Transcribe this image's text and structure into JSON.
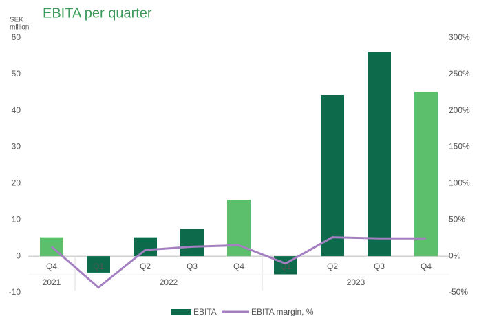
{
  "chart_data": {
    "type": "bar",
    "title": "EBITA per quarter",
    "y_label_lines": [
      "SEK",
      "million"
    ],
    "categories": [
      "Q4",
      "Q1",
      "Q2",
      "Q3",
      "Q4",
      "Q1",
      "Q2",
      "Q3",
      "Q4"
    ],
    "years": [
      "2021",
      "2022",
      null,
      null,
      null,
      "2023",
      null,
      null,
      null
    ],
    "series": [
      {
        "name": "EBITA",
        "type": "bar",
        "color": "#0d6b4b",
        "colors": [
          "#5bbf6b",
          "#0d6b4b",
          "#0d6b4b",
          "#0d6b4b",
          "#5bbf6b",
          "#0d6b4b",
          "#0d6b4b",
          "#0d6b4b",
          "#5bbf6b"
        ],
        "values": [
          5.2,
          -4.5,
          5.2,
          7.5,
          15.5,
          -5,
          44.3,
          56.2,
          45.2
        ]
      },
      {
        "name": "EBITA margin, %",
        "type": "line",
        "color": "#a47fc1",
        "axis": "y2",
        "values": [
          13,
          -43,
          8.5,
          13,
          15,
          -10,
          26,
          24.5,
          24.5
        ]
      }
    ],
    "ylim": [
      -10,
      60
    ],
    "yticks": [
      -10,
      0,
      10,
      20,
      30,
      40,
      50,
      60
    ],
    "y2lim": [
      -50,
      300
    ],
    "y2ticks": [
      {
        "value": -50,
        "label": "-50%"
      },
      {
        "value": 0,
        "label": "0%"
      },
      {
        "value": 50,
        "label": "50%"
      },
      {
        "value": 100,
        "label": "100%"
      },
      {
        "value": 150,
        "label": "150%"
      },
      {
        "value": 200,
        "label": "200%"
      },
      {
        "value": 250,
        "label": "250%"
      },
      {
        "value": 300,
        "label": "300%"
      }
    ],
    "grid": false,
    "legend": "bottom"
  }
}
